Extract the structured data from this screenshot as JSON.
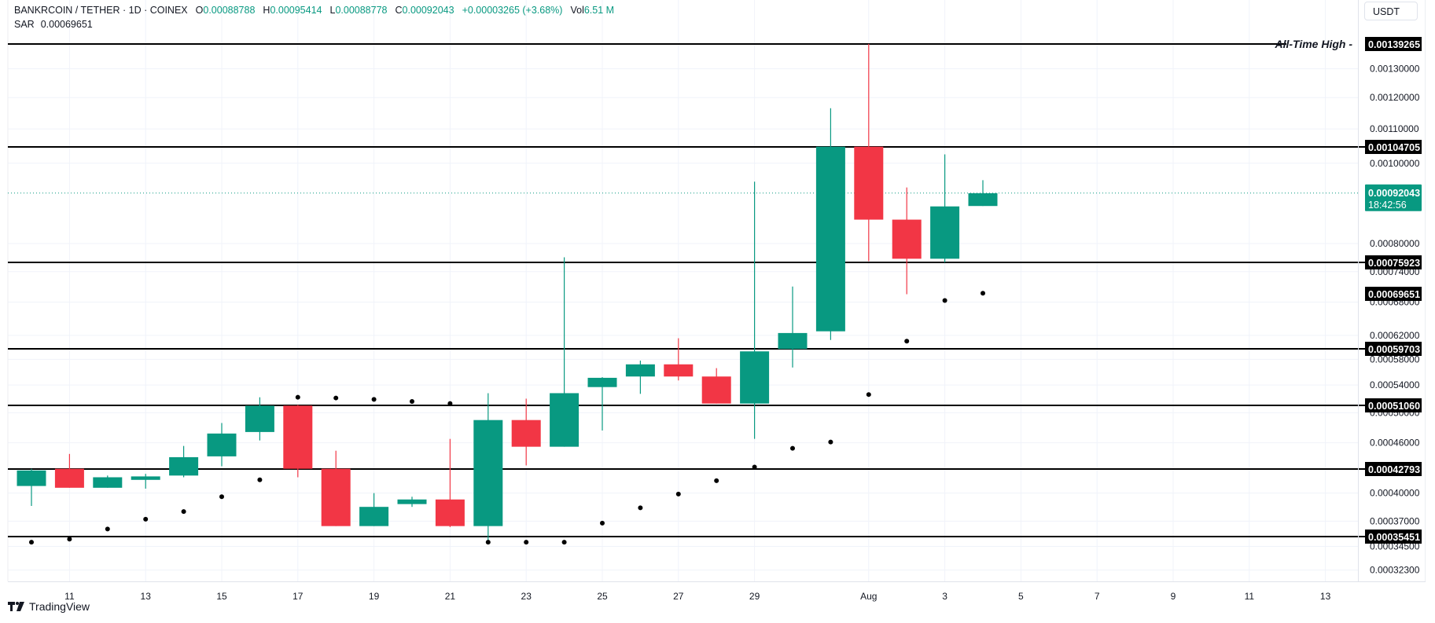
{
  "header": {
    "symbol": "BANKRCOIN / TETHER · 1D · COINEX",
    "open_label": "O",
    "open": "0.00088788",
    "high_label": "H",
    "high": "0.00095414",
    "low_label": "L",
    "low": "0.00088778",
    "close_label": "C",
    "close": "0.00092043",
    "change": "+0.00003265 (+3.68%)",
    "vol_label": "Vol",
    "vol": "6.51 M",
    "indicator_label": "SAR",
    "indicator_value": "0.00069651"
  },
  "currency_button": "USDT",
  "branding": "TradingView",
  "colors": {
    "up": "#089981",
    "down": "#F23645",
    "level_line": "#000000",
    "grid": "#F0F3FA",
    "sar_dot": "#000000",
    "last_price_bg": "#089981"
  },
  "chart_data": {
    "type": "candlestick",
    "title": "BANKRCOIN / TETHER · 1D · COINEX",
    "scale": "log",
    "ylim": [
      0.000315,
      0.00142
    ],
    "x_tick_labels": [
      "11",
      "13",
      "15",
      "17",
      "19",
      "21",
      "23",
      "25",
      "27",
      "29",
      "Aug",
      "3",
      "5",
      "7",
      "9",
      "11",
      "13"
    ],
    "y_tick_labels": [
      "0.00130000",
      "0.00120000",
      "0.00110000",
      "0.00100000",
      "0.00080000",
      "0.00074000",
      "0.00068000",
      "0.00062000",
      "0.00058000",
      "0.00054000",
      "0.00050000",
      "0.00046000",
      "0.00040000",
      "0.00037000",
      "0.00034500",
      "0.00032300"
    ],
    "candles": [
      {
        "date": "Jul 10",
        "o": 0.000408,
        "h": 0.000428,
        "l": 0.000386,
        "c": 0.000426
      },
      {
        "date": "Jul 11",
        "o": 0.000428,
        "h": 0.000446,
        "l": 0.000406,
        "c": 0.000406
      },
      {
        "date": "Jul 12",
        "o": 0.000406,
        "h": 0.00042,
        "l": 0.000406,
        "c": 0.000418
      },
      {
        "date": "Jul 13",
        "o": 0.000415,
        "h": 0.000422,
        "l": 0.000405,
        "c": 0.000419
      },
      {
        "date": "Jul 14",
        "o": 0.00042,
        "h": 0.000456,
        "l": 0.000418,
        "c": 0.000442
      },
      {
        "date": "Jul 15",
        "o": 0.000443,
        "h": 0.000486,
        "l": 0.000431,
        "c": 0.000472
      },
      {
        "date": "Jul 16",
        "o": 0.000474,
        "h": 0.000522,
        "l": 0.000463,
        "c": 0.00051
      },
      {
        "date": "Jul 17",
        "o": 0.00051,
        "h": 0.000511,
        "l": 0.000418,
        "c": 0.000428
      },
      {
        "date": "Jul 18",
        "o": 0.000428,
        "h": 0.00045,
        "l": 0.000365,
        "c": 0.000365
      },
      {
        "date": "Jul 19",
        "o": 0.000365,
        "h": 0.0004,
        "l": 0.000365,
        "c": 0.000385
      },
      {
        "date": "Jul 20",
        "o": 0.000388,
        "h": 0.000396,
        "l": 0.000385,
        "c": 0.000393
      },
      {
        "date": "Jul 21",
        "o": 0.000393,
        "h": 0.000465,
        "l": 0.000364,
        "c": 0.000365
      },
      {
        "date": "Jul 22",
        "o": 0.000365,
        "h": 0.000528,
        "l": 0.000348,
        "c": 0.00049
      },
      {
        "date": "Jul 23",
        "o": 0.00049,
        "h": 0.00052,
        "l": 0.000432,
        "c": 0.000455
      },
      {
        "date": "Jul 24",
        "o": 0.000455,
        "h": 0.00077,
        "l": 0.000455,
        "c": 0.000528
      },
      {
        "date": "Jul 25",
        "o": 0.000537,
        "h": 0.000552,
        "l": 0.000476,
        "c": 0.000551
      },
      {
        "date": "Jul 26",
        "o": 0.000553,
        "h": 0.000578,
        "l": 0.000527,
        "c": 0.000572
      },
      {
        "date": "Jul 27",
        "o": 0.000572,
        "h": 0.000615,
        "l": 0.000547,
        "c": 0.000553
      },
      {
        "date": "Jul 28",
        "o": 0.000553,
        "h": 0.000566,
        "l": 0.000513,
        "c": 0.000513
      },
      {
        "date": "Jul 29",
        "o": 0.000513,
        "h": 0.00095,
        "l": 0.000465,
        "c": 0.000593
      },
      {
        "date": "Jul 30",
        "o": 0.000597,
        "h": 0.00071,
        "l": 0.000567,
        "c": 0.000624
      },
      {
        "date": "Jul 31",
        "o": 0.000627,
        "h": 0.001165,
        "l": 0.000612,
        "c": 0.001047
      },
      {
        "date": "Aug 1",
        "o": 0.001047,
        "h": 0.001393,
        "l": 0.000762,
        "c": 0.000855
      },
      {
        "date": "Aug 2",
        "o": 0.000855,
        "h": 0.000935,
        "l": 0.000695,
        "c": 0.000767
      },
      {
        "date": "Aug 3",
        "o": 0.000767,
        "h": 0.001025,
        "l": 0.000759,
        "c": 0.000887
      },
      {
        "date": "Aug 4",
        "o": 0.000888,
        "h": 0.000954,
        "l": 0.000888,
        "c": 0.00092
      }
    ],
    "sar": [
      0.000349,
      0.000352,
      0.000362,
      0.000372,
      0.00038,
      0.000396,
      0.000415,
      0.000522,
      0.000521,
      0.000519,
      0.000516,
      0.000513,
      0.000349,
      0.000349,
      0.000349,
      0.000368,
      0.000384,
      0.000399,
      0.000414,
      0.00043,
      0.000453,
      0.000461,
      0.000526,
      0.00061,
      0.000683,
      0.000697
    ],
    "horizontal_levels": [
      {
        "price": "0.00139265",
        "label": "All-Time High"
      },
      {
        "price": "0.00104705"
      },
      {
        "price": "0.00075923"
      },
      {
        "price": "0.00069651",
        "line": false
      },
      {
        "price": "0.00059703"
      },
      {
        "price": "0.00051060"
      },
      {
        "price": "0.00042793"
      },
      {
        "price": "0.00035451"
      }
    ],
    "last_price": {
      "value": "0.00092043",
      "countdown": "18:42:56"
    }
  }
}
